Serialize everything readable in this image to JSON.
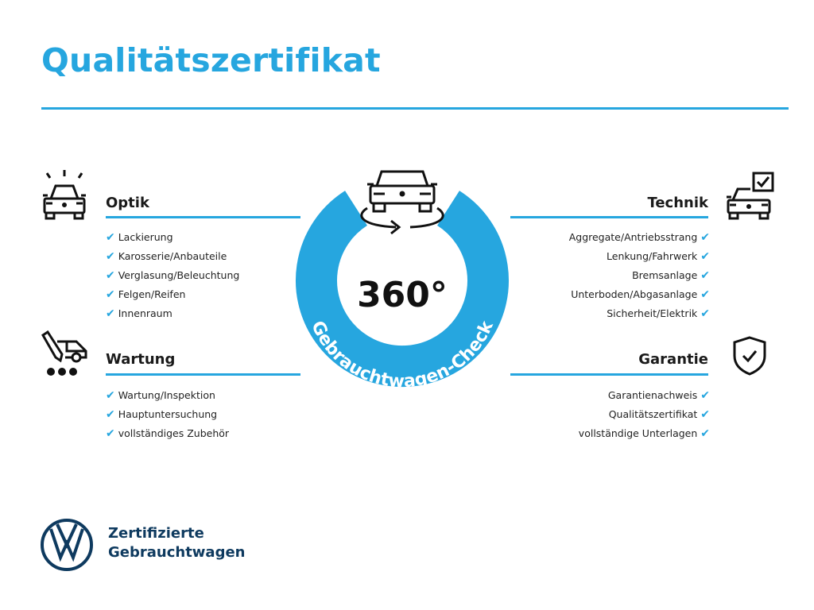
{
  "title": "Qualitätszertifikat",
  "center": {
    "number": "360°",
    "ring_text": "Gebrauchtwagen-Check",
    "icon": "car-rotate-360-icon"
  },
  "colors": {
    "accent": "#26a6df",
    "text": "#1a1a1a",
    "brand": "#0e3a5f"
  },
  "sections": {
    "optik": {
      "title": "Optik",
      "icon": "car-lights-icon",
      "items": [
        "Lackierung",
        "Karosserie/Anbauteile",
        "Verglasung/Beleuchtung",
        "Felgen/Reifen",
        "Innenraum"
      ]
    },
    "wartung": {
      "title": "Wartung",
      "icon": "service-van-pencil-icon",
      "items": [
        "Wartung/Inspektion",
        "Hauptuntersuchung",
        "vollständiges Zubehör"
      ]
    },
    "technik": {
      "title": "Technik",
      "icon": "car-checkbox-icon",
      "items": [
        "Aggregate/Antriebsstrang",
        "Lenkung/Fahrwerk",
        "Bremsanlage",
        "Unterboden/Abgasanlage",
        "Sicherheit/Elektrik"
      ]
    },
    "garantie": {
      "title": "Garantie",
      "icon": "shield-check-icon",
      "items": [
        "Garantienachweis",
        "Qualitätszertifikat",
        "vollständige Unterlagen"
      ]
    }
  },
  "check_mark": "✔",
  "brand": {
    "line1": "Zertifizierte",
    "line2": "Gebrauchtwagen",
    "logo": "vw-logo"
  }
}
